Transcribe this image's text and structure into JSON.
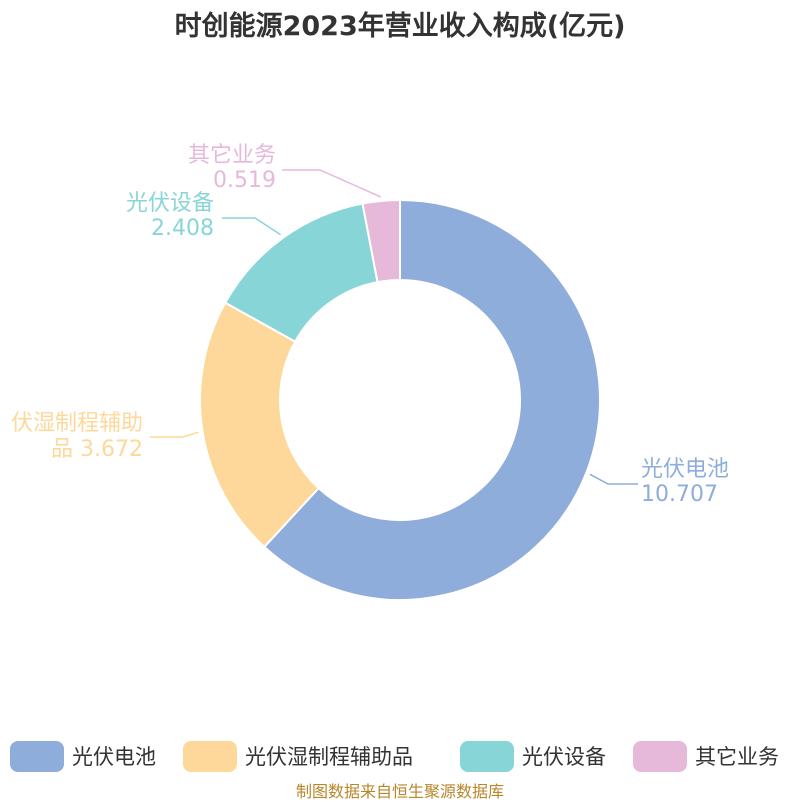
{
  "chart_data": {
    "type": "pie",
    "title": "时创能源2023年营业收入构成(亿元)",
    "series": [
      {
        "name": "光伏电池",
        "value": 10.707,
        "color": "#8eadda",
        "label_lines": [
          "光伏电池",
          "10.707"
        ],
        "label_side": "right"
      },
      {
        "name": "光伏湿制程辅助品",
        "value": 3.672,
        "color": "#fed89b",
        "label_lines": [
          "伏湿制程辅助",
          "品 3.672"
        ],
        "label_side": "left"
      },
      {
        "name": "光伏设备",
        "value": 2.408,
        "color": "#88d5d8",
        "label_lines": [
          "光伏设备",
          "2.408"
        ],
        "label_side": "left"
      },
      {
        "name": "其它业务",
        "value": 0.519,
        "color": "#e6b9da",
        "label_lines": [
          "其它业务",
          "0.519"
        ],
        "label_side": "left"
      }
    ],
    "legend": {
      "position": "bottom"
    }
  },
  "source": "制图数据来自恒生聚源数据库"
}
